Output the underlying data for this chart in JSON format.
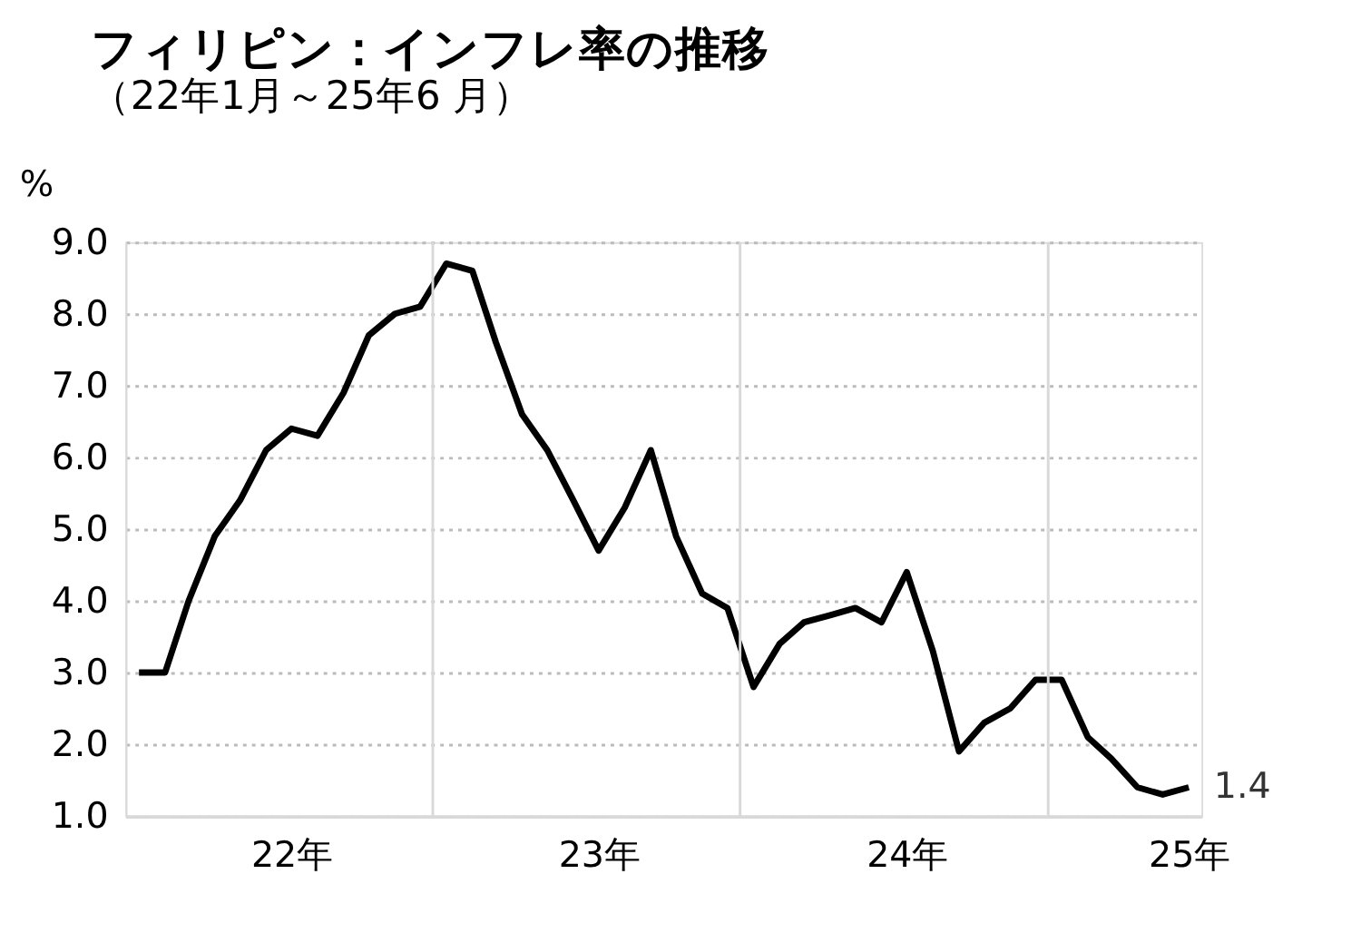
{
  "chart_data": {
    "type": "line",
    "title": "フィリピン：インフレ率の推移",
    "subtitle": "（22年1月～25年6 月）",
    "ylabel": "%",
    "x": [
      "2022-01",
      "2022-02",
      "2022-03",
      "2022-04",
      "2022-05",
      "2022-06",
      "2022-07",
      "2022-08",
      "2022-09",
      "2022-10",
      "2022-11",
      "2022-12",
      "2023-01",
      "2023-02",
      "2023-03",
      "2023-04",
      "2023-05",
      "2023-06",
      "2023-07",
      "2023-08",
      "2023-09",
      "2023-10",
      "2023-11",
      "2023-12",
      "2024-01",
      "2024-02",
      "2024-03",
      "2024-04",
      "2024-05",
      "2024-06",
      "2024-07",
      "2024-08",
      "2024-09",
      "2024-10",
      "2024-11",
      "2024-12",
      "2025-01",
      "2025-02",
      "2025-03",
      "2025-04",
      "2025-05",
      "2025-06"
    ],
    "series": [
      {
        "color": "#000000",
        "values": [
          3.0,
          3.0,
          4.0,
          4.9,
          5.4,
          6.1,
          6.4,
          6.3,
          6.9,
          7.7,
          8.0,
          8.1,
          8.7,
          8.6,
          7.6,
          6.6,
          6.1,
          5.4,
          4.7,
          5.3,
          6.1,
          4.9,
          4.1,
          3.9,
          2.8,
          3.4,
          3.7,
          3.8,
          3.9,
          3.7,
          4.4,
          3.3,
          1.9,
          2.3,
          2.5,
          2.9,
          2.9,
          2.1,
          1.8,
          1.4,
          1.3,
          1.4
        ]
      }
    ],
    "xlim": [
      "2021-12-16",
      "2025-06-16"
    ],
    "xticks": [
      {
        "value": "2022-07",
        "label": "22年"
      },
      {
        "value": "2023-07",
        "label": "23年"
      },
      {
        "value": "2024-07",
        "label": "24年"
      },
      {
        "value": "2025-06",
        "label": "25年"
      }
    ],
    "ylim": [
      1,
      9
    ],
    "yticks": [
      {
        "value": 1,
        "label": "1.0"
      },
      {
        "value": 2,
        "label": "2.0"
      },
      {
        "value": 3,
        "label": "3.0"
      },
      {
        "value": 4,
        "label": "4.0"
      },
      {
        "value": 5,
        "label": "5.0"
      },
      {
        "value": 6,
        "label": "6.0"
      },
      {
        "value": 7,
        "label": "7.0"
      },
      {
        "value": 8,
        "label": "8.0"
      },
      {
        "value": 9,
        "label": "9.0"
      }
    ],
    "grid": "y",
    "marker": "none",
    "line_style": "solid",
    "ref_lines": [
      {
        "axis": "x",
        "value": "2022-12-16",
        "color": "#d9d9d9"
      },
      {
        "axis": "x",
        "value": "2023-12-16",
        "color": "#d9d9d9"
      },
      {
        "axis": "x",
        "value": "2024-12-16",
        "color": "#d9d9d9"
      }
    ],
    "annotations": [
      {
        "text": "1.4",
        "x": "2025-06",
        "y": 1.4
      }
    ]
  }
}
